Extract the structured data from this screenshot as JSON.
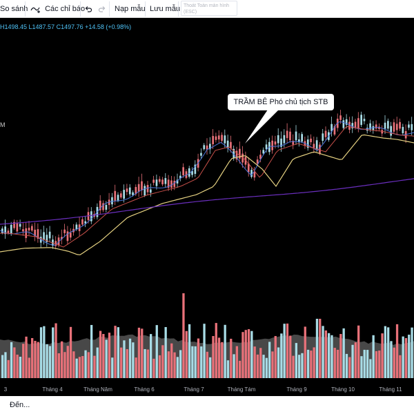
{
  "toolbar": {
    "compare_label": "So sánh",
    "indicators_label": "Các chỉ báo",
    "load_template_label": "Nạp mẫu",
    "save_template_label": "Lưu mẫu",
    "exit_fullscreen_label": "Thoát Toàn màn hình",
    "exit_fullscreen_hint": "(ESC)"
  },
  "legend": {
    "ohlc_text": "H1498.45  L1487.57  C1497.76  +14.58 (+0.98%)"
  },
  "scale_marker": "M",
  "annotation": {
    "text": "TRẦM BÊ Phó chủ tịch STB"
  },
  "colors": {
    "up": "#a8dce6",
    "down": "#e87179",
    "ma_fast": "#4a73d9",
    "ma_mid": "#c8504a",
    "ma_slow": "#e6d282",
    "ma_long": "#6b2fbf",
    "volume_avg": "#5a5a5a"
  },
  "x_axis": {
    "labels": [
      "3",
      "Tháng 4",
      "Tháng Năm",
      "Tháng 6",
      "Tháng 7",
      "Tháng Tám",
      "Tháng 9",
      "Tháng 10",
      "Tháng 11"
    ]
  },
  "footer": {
    "goto_label": "Đến..."
  }
}
